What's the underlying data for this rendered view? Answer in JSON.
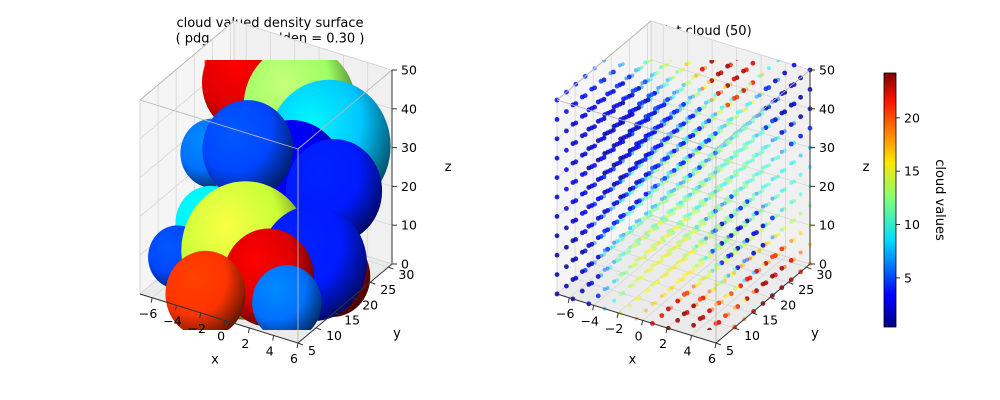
{
  "chart_data": [
    {
      "type": "surface3d",
      "title": "cloud valued density surface\n( pdg = 1.20, relden = 0.30 )",
      "xlabel": "x",
      "ylabel": "y",
      "zlabel": "z",
      "xlim": [
        -7,
        6
      ],
      "ylim": [
        5,
        31
      ],
      "zlim": [
        0,
        50
      ],
      "xticks": [
        "−6",
        "−4",
        "−2",
        "0",
        "2",
        "4",
        "6"
      ],
      "yticks": [
        "5",
        "10",
        "15",
        "20",
        "25",
        "30"
      ],
      "zticks": [
        "0",
        "10",
        "20",
        "30",
        "40",
        "50"
      ],
      "grid": true,
      "colormap": "jet",
      "blobs": [
        {
          "x": -5.0,
          "y": 25.0,
          "z": 46,
          "r": 2.4,
          "v": 20
        },
        {
          "x": -3.0,
          "y": 22.0,
          "z": 45,
          "r": 3.6,
          "v": 22
        },
        {
          "x": 0.5,
          "y": 24.0,
          "z": 41,
          "r": 4.2,
          "v": 13
        },
        {
          "x": 3.5,
          "y": 22.0,
          "z": 35,
          "r": 4.6,
          "v": 8
        },
        {
          "x": 4.5,
          "y": 20.0,
          "z": 26,
          "r": 3.6,
          "v": 4
        },
        {
          "x": 1.0,
          "y": 20.0,
          "z": 26,
          "r": 4.0,
          "v": 3
        },
        {
          "x": -2.0,
          "y": 18.0,
          "z": 32,
          "r": 3.4,
          "v": 5
        },
        {
          "x": -5.5,
          "y": 20.0,
          "z": 26,
          "r": 2.4,
          "v": 6
        },
        {
          "x": -2.5,
          "y": 18.0,
          "z": 18,
          "r": 2.2,
          "v": 7
        },
        {
          "x": -4.5,
          "y": 16.0,
          "z": 12,
          "r": 2.6,
          "v": 9
        },
        {
          "x": -1.0,
          "y": 14.0,
          "z": 10,
          "r": 4.8,
          "v": 14
        },
        {
          "x": 1.5,
          "y": 12.0,
          "z": 7,
          "r": 3.4,
          "v": 22
        },
        {
          "x": 4.0,
          "y": 16.0,
          "z": 10,
          "r": 4.0,
          "v": 4
        },
        {
          "x": 5.0,
          "y": 18.0,
          "z": 6,
          "r": 2.8,
          "v": 23
        },
        {
          "x": -6.0,
          "y": 12.0,
          "z": 5,
          "r": 2.2,
          "v": 5
        },
        {
          "x": -2.5,
          "y": 8.0,
          "z": 2,
          "r": 3.0,
          "v": 20
        },
        {
          "x": 3.0,
          "y": 12.0,
          "z": 2,
          "r": 2.6,
          "v": 6
        }
      ]
    },
    {
      "type": "scatter3d",
      "title": "point cloud (50)",
      "xlabel": "x",
      "ylabel": "y",
      "zlabel": "z",
      "xlim": [
        -7,
        6
      ],
      "ylim": [
        5,
        31
      ],
      "zlim": [
        0,
        50
      ],
      "xticks": [
        "−6",
        "−4",
        "−2",
        "0",
        "2",
        "4",
        "6"
      ],
      "yticks": [
        "5",
        "10",
        "15",
        "20",
        "25",
        "30"
      ],
      "zticks": [
        "0",
        "10",
        "20",
        "30",
        "40",
        "50"
      ],
      "grid": true,
      "colormap": "jet",
      "field_centers": [
        {
          "x": 1.0,
          "y": 26.0,
          "z": 48,
          "v": 24
        },
        {
          "x": 5.0,
          "y": 27.0,
          "z": 44,
          "v": 1
        },
        {
          "x": -3.0,
          "y": 6.0,
          "z": 34,
          "v": 1
        },
        {
          "x": -6.5,
          "y": 5.0,
          "z": 10,
          "v": 1
        },
        {
          "x": 4.5,
          "y": 17.0,
          "z": 16,
          "v": 1
        },
        {
          "x": 3.0,
          "y": 6.0,
          "z": 2,
          "v": 24
        },
        {
          "x": 6.0,
          "y": 20.0,
          "z": 3,
          "v": 24
        },
        {
          "x": -5.5,
          "y": 22.0,
          "z": 35,
          "v": 1
        },
        {
          "x": 0.0,
          "y": 18.0,
          "z": 38,
          "v": 3
        },
        {
          "x": 1.0,
          "y": 6.0,
          "z": 12,
          "v": 14
        },
        {
          "x": -2.5,
          "y": 28.0,
          "z": 22,
          "v": 14
        },
        {
          "x": 5.5,
          "y": 12.0,
          "z": 32,
          "v": 12
        },
        {
          "x": -1.0,
          "y": 16.0,
          "z": 8,
          "v": 16
        },
        {
          "x": -5.0,
          "y": 28.0,
          "z": 48,
          "v": 15
        },
        {
          "x": 3.0,
          "y": 25.0,
          "z": 30,
          "v": 11
        },
        {
          "x": -5.0,
          "y": 10.0,
          "z": 24,
          "v": 3
        },
        {
          "x": 5.5,
          "y": 6.0,
          "z": 24,
          "v": 13
        }
      ]
    },
    {
      "type": "colorbar",
      "label": "cloud values",
      "colormap": "jet",
      "vmin": 0.4,
      "vmax": 24.2,
      "ticks": [
        5,
        10,
        15,
        20
      ],
      "ticklabels": [
        "5",
        "10",
        "15",
        "20"
      ]
    }
  ]
}
